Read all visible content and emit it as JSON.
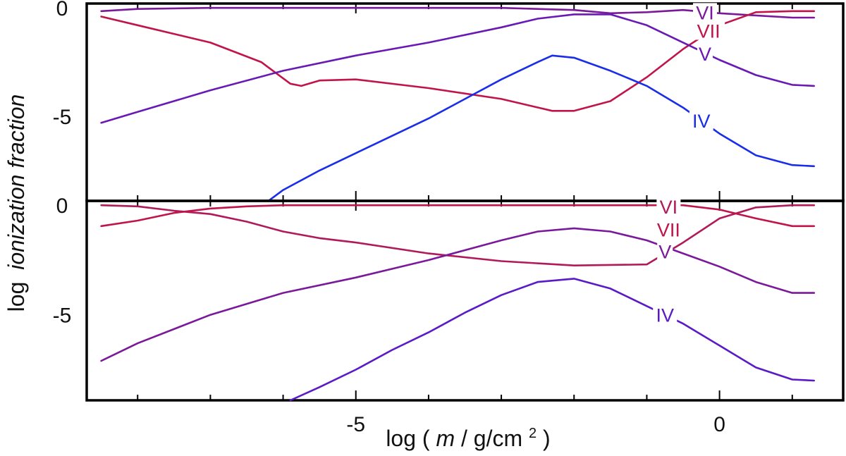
{
  "chart_data": [
    {
      "type": "line",
      "panel": "top",
      "xlim": [
        -8.7,
        1.7
      ],
      "ylim": [
        -8.9,
        0.2
      ],
      "yticks": [
        {
          "value": 0,
          "label": "0"
        },
        {
          "value": -5,
          "label": "-5"
        }
      ],
      "series": [
        {
          "name": "VI",
          "color": "#7a1a9a",
          "label_at": [
            -0.2,
            -0.2
          ],
          "x": [
            -8.5,
            -8,
            -7,
            -6,
            -5,
            -4,
            -3,
            -2,
            -1.5,
            -1,
            -0.5,
            0,
            0.5,
            1,
            1.3
          ],
          "y": [
            -0.15,
            -0.05,
            0,
            0,
            0,
            0,
            0,
            -0.1,
            -0.25,
            -0.2,
            -0.1,
            -0.25,
            -0.35,
            -0.45,
            -0.45
          ]
        },
        {
          "name": "VII",
          "color": "#c0144a",
          "label_at": [
            -0.15,
            -1.05
          ],
          "x": [
            -8.5,
            -8,
            -7,
            -6.3,
            -5.9,
            -5.75,
            -5.5,
            -5,
            -4,
            -3,
            -2.3,
            -2,
            -1.5,
            -1,
            -0.5,
            0,
            0.5,
            1,
            1.3
          ],
          "y": [
            -0.4,
            -0.8,
            -1.6,
            -2.5,
            -3.5,
            -3.6,
            -3.35,
            -3.3,
            -3.7,
            -4.2,
            -4.75,
            -4.75,
            -4.3,
            -3.2,
            -1.9,
            -0.8,
            -0.2,
            -0.15,
            -0.15
          ]
        },
        {
          "name": "V",
          "color": "#6a1ab4",
          "label_at": [
            -0.2,
            -2.1
          ],
          "x": [
            -8.5,
            -8,
            -7,
            -6,
            -5,
            -4,
            -3,
            -2.5,
            -2,
            -1.5,
            -1,
            -0.5,
            0,
            0.5,
            1,
            1.3
          ],
          "y": [
            -5.3,
            -4.8,
            -3.8,
            -2.9,
            -2.2,
            -1.6,
            -0.9,
            -0.5,
            -0.3,
            -0.3,
            -0.8,
            -1.6,
            -2.4,
            -3.1,
            -3.55,
            -3.6
          ]
        },
        {
          "name": "IV",
          "color": "#1a2ee8",
          "label_at": [
            -0.25,
            -5.2
          ],
          "x": [
            -6.2,
            -6,
            -5.5,
            -5,
            -4.5,
            -4,
            -3.5,
            -3,
            -2.5,
            -2.3,
            -2,
            -1.5,
            -1,
            -0.5,
            0,
            0.5,
            1,
            1.3
          ],
          "y": [
            -8.9,
            -8.4,
            -7.5,
            -6.7,
            -5.9,
            -5.1,
            -4.2,
            -3.3,
            -2.5,
            -2.2,
            -2.3,
            -2.9,
            -3.6,
            -4.6,
            -5.8,
            -6.8,
            -7.25,
            -7.3
          ]
        }
      ]
    },
    {
      "type": "line",
      "panel": "bottom",
      "xlim": [
        -8.7,
        1.7
      ],
      "ylim": [
        -8.9,
        0.2
      ],
      "yticks": [
        {
          "value": 0,
          "label": "0"
        },
        {
          "value": -5,
          "label": "-5"
        }
      ],
      "series": [
        {
          "name": "VI",
          "color": "#b01a5a",
          "label_at": [
            -0.7,
            -0.05
          ],
          "x": [
            -8.5,
            -8,
            -7.5,
            -7,
            -6.5,
            -6,
            -5.5,
            -5,
            -4,
            -3,
            -2,
            -1,
            -0.5,
            0,
            0.5,
            1,
            1.3
          ],
          "y": [
            0,
            -0.05,
            -0.25,
            -0.4,
            -0.75,
            -1.2,
            -1.5,
            -1.7,
            -2.2,
            -2.55,
            -2.75,
            -2.7,
            -1.7,
            -0.6,
            -0.1,
            0,
            0
          ]
        },
        {
          "name": "VII",
          "color": "#c0144a",
          "label_at": [
            -0.7,
            -1.1
          ],
          "x": [
            -8.5,
            -8,
            -7.5,
            -7,
            -6.5,
            -6,
            -5,
            -4,
            -3,
            -2,
            -1,
            -0.5,
            0,
            0.5,
            1,
            1.3
          ],
          "y": [
            -0.95,
            -0.7,
            -0.35,
            -0.15,
            -0.05,
            0,
            0,
            0,
            0,
            0,
            0,
            0,
            -0.2,
            -0.6,
            -0.95,
            -0.95
          ]
        },
        {
          "name": "V",
          "color": "#7a1a9a",
          "label_at": [
            -0.75,
            -2.1
          ],
          "x": [
            -8.5,
            -8,
            -7,
            -6,
            -5,
            -4,
            -3,
            -2.5,
            -2,
            -1.5,
            -1,
            -0.5,
            0,
            0.5,
            1,
            1.3
          ],
          "y": [
            -7.1,
            -6.3,
            -5,
            -4,
            -3.3,
            -2.5,
            -1.6,
            -1.2,
            -1.05,
            -1.2,
            -1.6,
            -2.2,
            -2.8,
            -3.5,
            -4,
            -4
          ]
        },
        {
          "name": "IV",
          "color": "#5a1ac8",
          "label_at": [
            -0.75,
            -5.0
          ],
          "x": [
            -5.9,
            -5.5,
            -5,
            -4.5,
            -4,
            -3.5,
            -3,
            -2.5,
            -2,
            -1.5,
            -1,
            -0.5,
            0,
            0.5,
            1,
            1.3
          ],
          "y": [
            -8.9,
            -8.3,
            -7.5,
            -6.6,
            -5.8,
            -4.9,
            -4.1,
            -3.5,
            -3.35,
            -3.8,
            -4.6,
            -5.4,
            -6.4,
            -7.4,
            -7.95,
            -8
          ]
        }
      ]
    }
  ],
  "axes": {
    "xticks": [
      {
        "value": -5,
        "label": "-5"
      },
      {
        "value": 0,
        "label": "0"
      }
    ],
    "ylabel_prefix": "log",
    "ylabel_italic": "ionization fraction",
    "xlabel_prefix": "log (",
    "xlabel_var": "m",
    "xlabel_rest": " / g/cm",
    "xlabel_sup": "2",
    "xlabel_suffix": ")"
  }
}
